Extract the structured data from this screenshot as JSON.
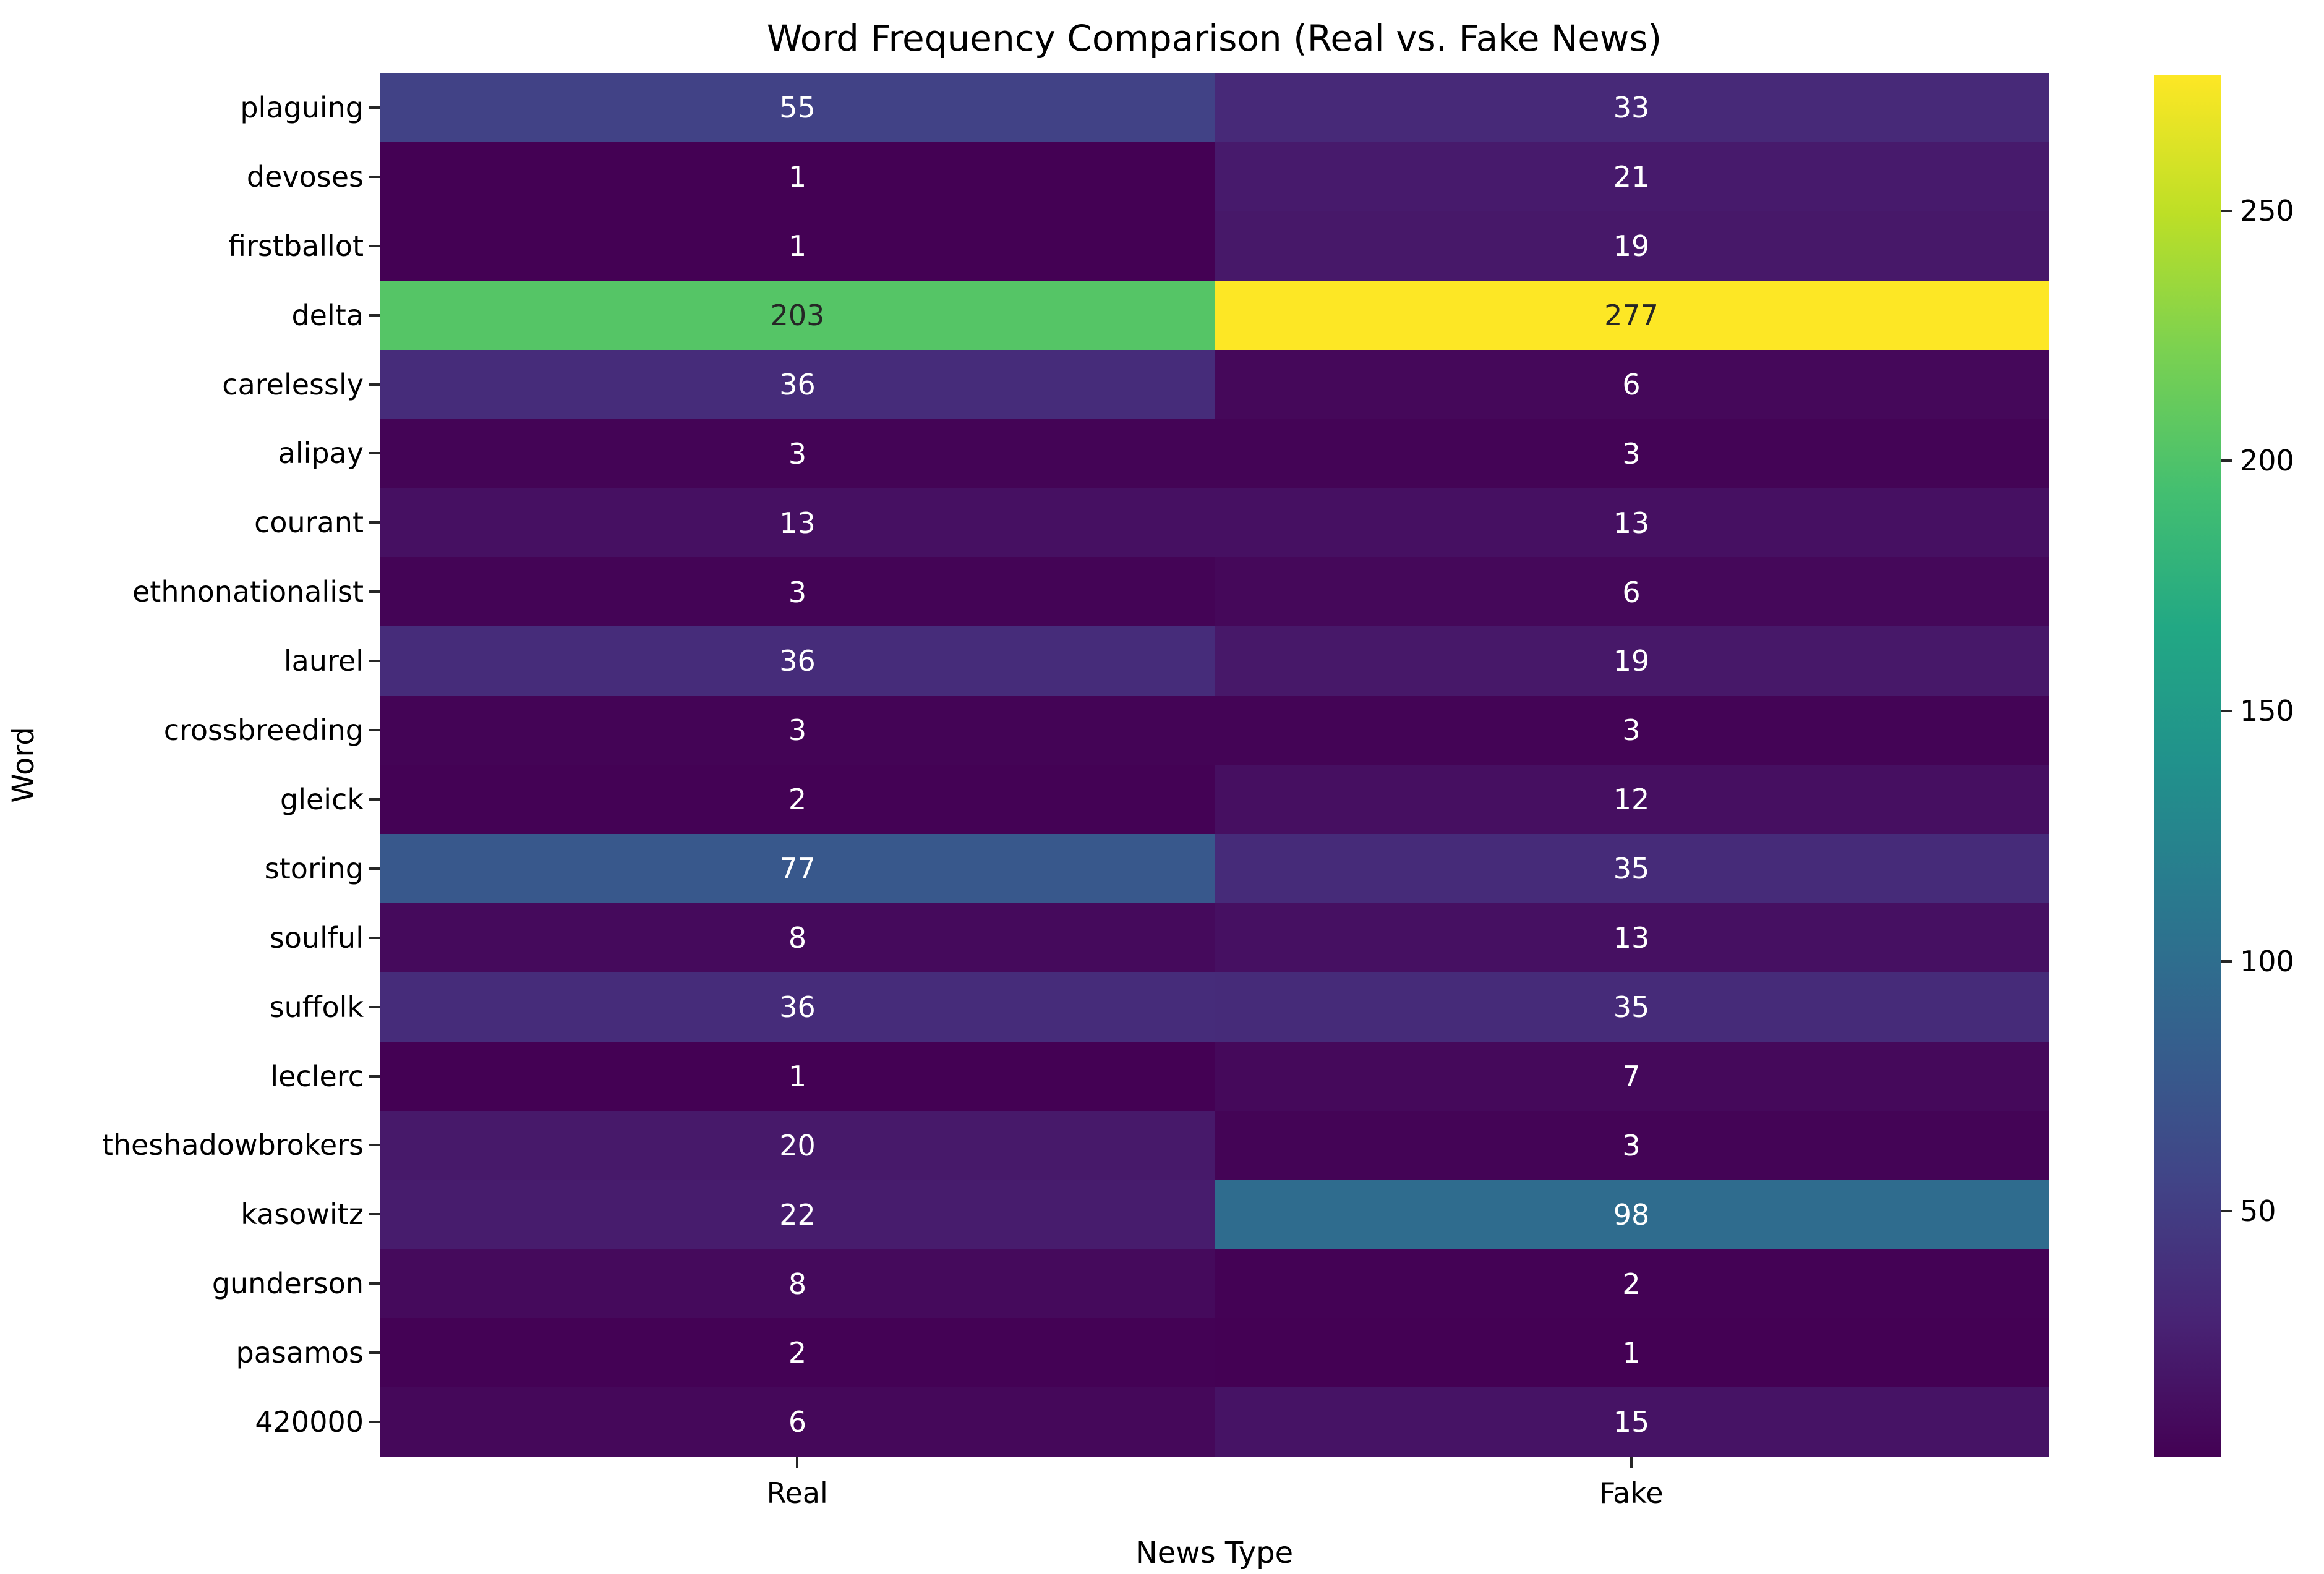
{
  "chart_data": {
    "type": "heatmap",
    "title": "Word Frequency Comparison (Real vs. Fake News)",
    "xlabel": "News Type",
    "ylabel": "Word",
    "columns": [
      "Real",
      "Fake"
    ],
    "rows": [
      "plaguing",
      "devoses",
      "firstballot",
      "delta",
      "carelessly",
      "alipay",
      "courant",
      "ethnonationalist",
      "laurel",
      "crossbreeding",
      "gleick",
      "storing",
      "soulful",
      "suffolk",
      "leclerc",
      "theshadowbrokers",
      "kasowitz",
      "gunderson",
      "pasamos",
      "420000"
    ],
    "values": [
      [
        55,
        33
      ],
      [
        1,
        21
      ],
      [
        1,
        19
      ],
      [
        203,
        277
      ],
      [
        36,
        6
      ],
      [
        3,
        3
      ],
      [
        13,
        13
      ],
      [
        3,
        6
      ],
      [
        36,
        19
      ],
      [
        3,
        3
      ],
      [
        2,
        12
      ],
      [
        77,
        35
      ],
      [
        8,
        13
      ],
      [
        36,
        35
      ],
      [
        1,
        7
      ],
      [
        20,
        3
      ],
      [
        22,
        98
      ],
      [
        8,
        2
      ],
      [
        2,
        1
      ],
      [
        6,
        15
      ]
    ],
    "colormap": "viridis",
    "vmin": 1,
    "vmax": 277,
    "colorbar_ticks": [
      50,
      100,
      150,
      200,
      250
    ],
    "legend_position": "right",
    "grid": false,
    "annotated": true
  }
}
